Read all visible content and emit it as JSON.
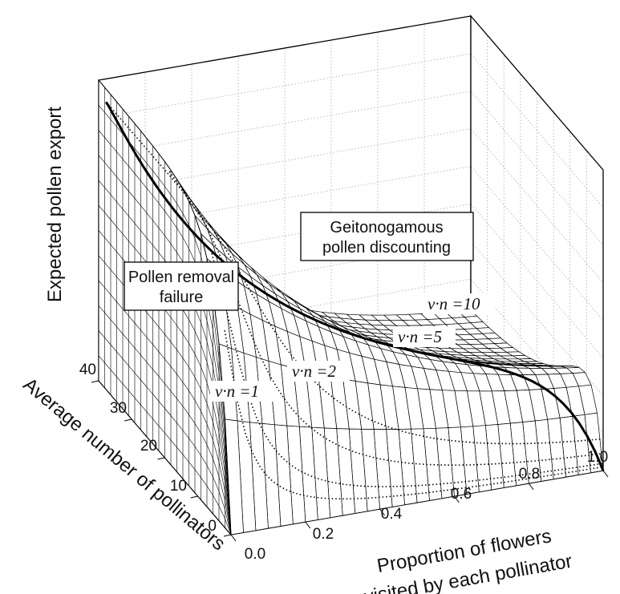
{
  "chart_data": {
    "type": "surface-3d",
    "zlabel": "Expected pollen export",
    "xlabel": [
      "Proportion of flowers",
      "visited by each pollinator"
    ],
    "ylabel": "Average number of pollinators",
    "x_ticks": [
      "0.0",
      "0.2",
      "0.4",
      "0.6",
      "0.8",
      "1.0"
    ],
    "y_ticks": [
      "0",
      "10",
      "20",
      "30",
      "40"
    ],
    "xlim": [
      0,
      1
    ],
    "ylim": [
      0,
      40
    ],
    "annotations": {
      "removal": [
        "Pollen removal",
        "failure"
      ],
      "discounting": [
        "Geitonogamous",
        "pollen discounting"
      ]
    },
    "contours": [
      {
        "label": "ν·n =1",
        "vn": 1
      },
      {
        "label": "ν·n =2",
        "vn": 2
      },
      {
        "label": "ν·n =5",
        "vn": 5
      },
      {
        "label": "ν·n =10",
        "vn": 10
      }
    ]
  }
}
